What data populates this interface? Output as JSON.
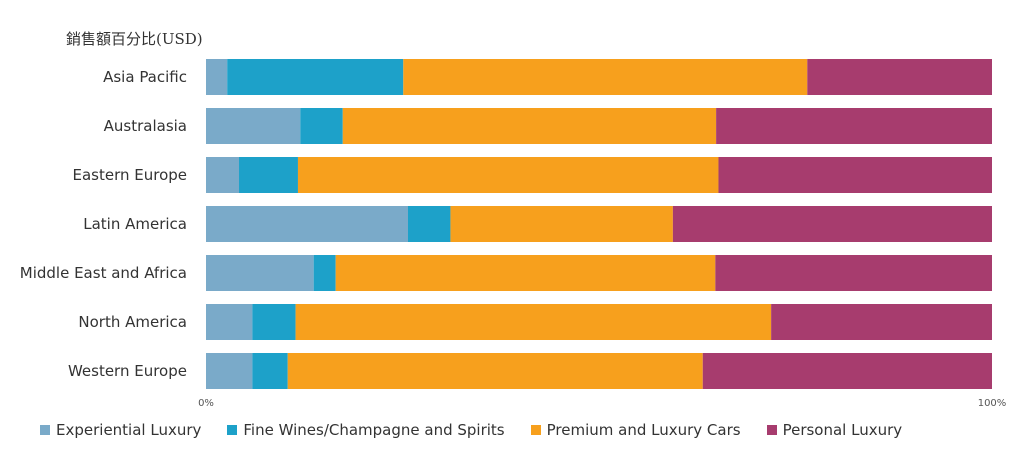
{
  "chart_data": {
    "type": "bar",
    "orientation": "horizontal",
    "stacked": "percent",
    "title": "銷售額百分比(USD)",
    "categories": [
      "Asia Pacific",
      "Australasia",
      "Eastern Europe",
      "Latin America",
      "Middle East and Africa",
      "North America",
      "Western Europe"
    ],
    "series": [
      {
        "name": "Experiential Luxury",
        "color": "#7aaac9",
        "values": [
          2.7,
          12.0,
          4.2,
          25.7,
          13.7,
          5.9,
          5.9
        ]
      },
      {
        "name": "Fine Wines/Champagne and Spirits",
        "color": "#1da1c9",
        "values": [
          22.4,
          5.4,
          7.5,
          5.4,
          2.8,
          5.5,
          4.5
        ]
      },
      {
        "name": "Premium and Luxury Cars",
        "color": "#f7a01d",
        "values": [
          51.4,
          47.5,
          53.5,
          28.3,
          48.3,
          60.5,
          52.8
        ]
      },
      {
        "name": "Personal Luxury",
        "color": "#a73c6e",
        "values": [
          23.5,
          35.1,
          34.8,
          40.6,
          35.2,
          28.1,
          36.8
        ]
      }
    ],
    "xlim": [
      0,
      100
    ],
    "x_ticks": [
      "0%",
      "100%"
    ],
    "grid": false,
    "legend_position": "bottom"
  }
}
